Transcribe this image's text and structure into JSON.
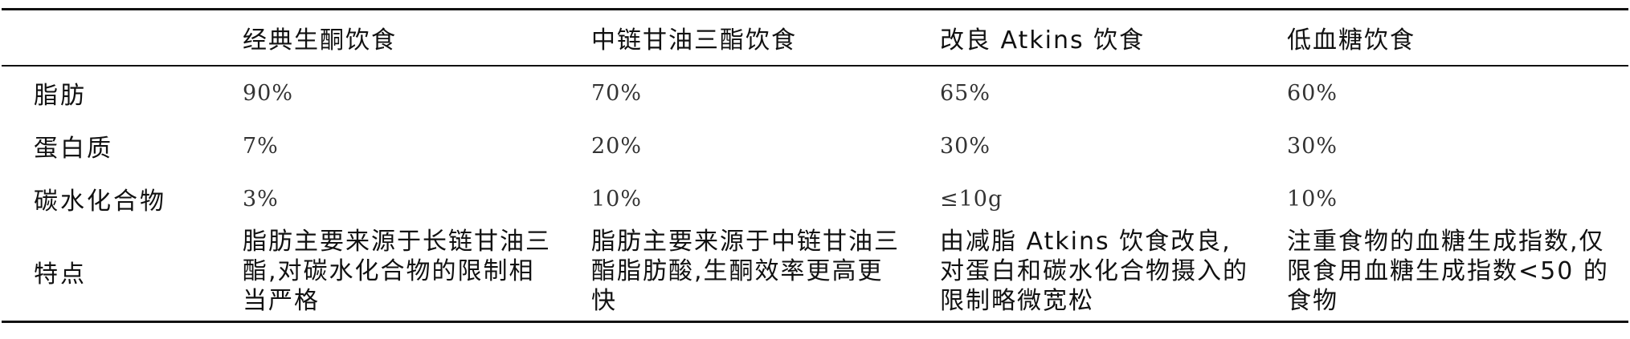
{
  "table": {
    "headers": [
      "",
      "经典生酮饮食",
      "中链甘油三酯饮食",
      "改良 Atkins 饮食",
      "低血糖饮食"
    ],
    "rows": [
      {
        "label": "脂肪",
        "values": [
          "90%",
          "70%",
          "65%",
          "60%"
        ]
      },
      {
        "label": "蛋白质",
        "values": [
          "7%",
          "20%",
          "30%",
          "30%"
        ]
      },
      {
        "label": "碳水化合物",
        "values": [
          "3%",
          "10%",
          "≤10g",
          "10%"
        ]
      },
      {
        "label": "特点",
        "values": [
          "脂肪主要来源于长链甘油三酯,对碳水化合物的限制相当严格",
          "脂肪主要来源于中链甘油三酯脂肪酸,生酮效率更高更快",
          "由减脂 Atkins 饮食改良,对蛋白和碳水化合物摄入的限制略微宽松",
          "注重食物的血糖生成指数,仅限食用血糖生成指数<50 的食物"
        ]
      }
    ]
  }
}
